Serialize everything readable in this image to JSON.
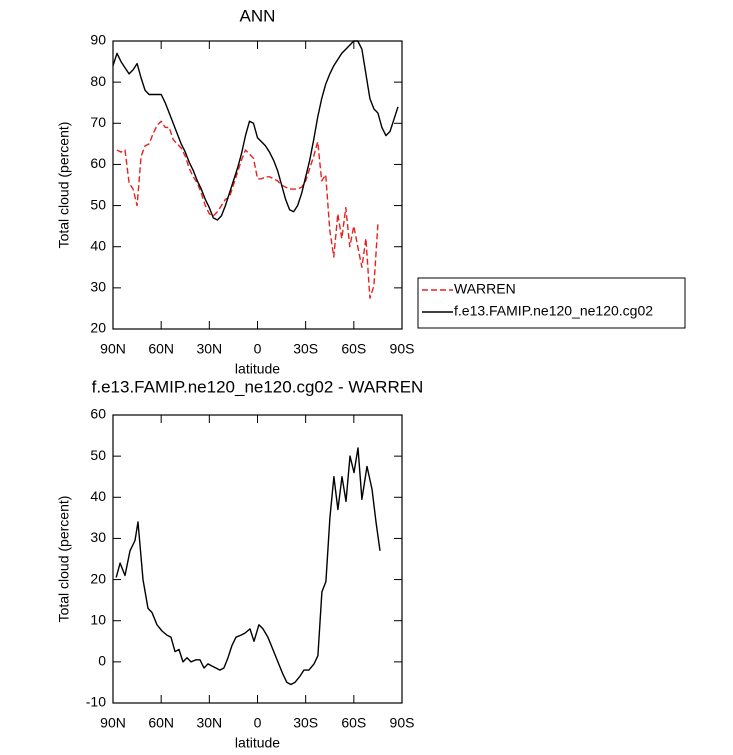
{
  "chart_data": [
    {
      "type": "line",
      "title": "ANN",
      "x_label": "latitude",
      "y_label": "Total cloud (percent)",
      "xlim": [
        90,
        -90
      ],
      "ylim": [
        20,
        90
      ],
      "xticks": [
        {
          "value": 90,
          "label": "90N"
        },
        {
          "value": 60,
          "label": "60N"
        },
        {
          "value": 30,
          "label": "30N"
        },
        0,
        {
          "value": -30,
          "label": "30S"
        },
        {
          "value": -60,
          "label": "60S"
        },
        {
          "value": -90,
          "label": "90S"
        }
      ],
      "yticks": [
        20,
        30,
        40,
        50,
        60,
        70,
        80,
        90
      ],
      "legend": "right",
      "series": [
        {
          "name": "WARREN",
          "color": "#e8201e",
          "linestyle": "dashed",
          "x": [
            87.5,
            85,
            82.5,
            80,
            77.5,
            75,
            72.5,
            70,
            67.5,
            65,
            62.5,
            60,
            57.5,
            55,
            52.5,
            50,
            47.5,
            45,
            42.5,
            40,
            37.5,
            35,
            32.5,
            30,
            27.5,
            25,
            22.5,
            20,
            17.5,
            15,
            12.5,
            10,
            7.5,
            5,
            2.5,
            0,
            -2.5,
            -5,
            -7.5,
            -10,
            -12.5,
            -15,
            -17.5,
            -20,
            -22.5,
            -25,
            -27.5,
            -30,
            -32.5,
            -35,
            -37.5,
            -40,
            -42.5,
            -45,
            -47.5,
            -50,
            -52.5,
            -55,
            -57.5,
            -60,
            -62.5,
            -65,
            -67.5,
            -70,
            -72.5,
            -75
          ],
          "values": [
            63.5,
            63,
            63.5,
            55.5,
            54,
            50,
            62,
            64.5,
            65,
            67.5,
            69.5,
            70.5,
            69,
            69,
            66,
            65,
            64,
            62,
            59,
            57,
            55.5,
            53,
            50,
            48,
            47.5,
            48.5,
            50,
            51.5,
            52,
            55,
            58,
            61,
            63.5,
            62.5,
            61.5,
            56.5,
            56.5,
            57,
            57,
            56.5,
            56,
            55,
            54.5,
            54,
            54,
            54,
            54.5,
            56,
            59,
            62,
            65.5,
            56,
            57.5,
            44,
            37.5,
            48,
            42,
            49.5,
            40,
            45,
            40,
            35,
            42,
            27.5,
            30.5,
            45.5
          ]
        },
        {
          "name": "f.e13.FAMIP.ne120_ne120.cg02",
          "color": "#000000",
          "linestyle": "solid",
          "x": [
            90,
            87.5,
            85,
            82.5,
            80,
            77.5,
            75,
            72.5,
            70,
            67.5,
            65,
            62.5,
            60,
            57.5,
            55,
            52.5,
            50,
            47.5,
            45,
            42.5,
            40,
            37.5,
            35,
            32.5,
            30,
            27.5,
            25,
            22.5,
            20,
            17.5,
            15,
            12.5,
            10,
            7.5,
            5,
            2.5,
            0,
            -2.5,
            -5,
            -7.5,
            -10,
            -12.5,
            -15,
            -17.5,
            -20,
            -22.5,
            -25,
            -27.5,
            -30,
            -32.5,
            -35,
            -37.5,
            -40,
            -42.5,
            -45,
            -47.5,
            -50,
            -52.5,
            -55,
            -57.5,
            -60,
            -62.5,
            -65,
            -67.5,
            -70,
            -72.5,
            -75,
            -77.5,
            -80,
            -82.5,
            -85,
            -87.5
          ],
          "values": [
            84,
            87,
            85,
            83.5,
            82,
            83,
            84.5,
            81,
            78,
            77,
            77,
            77,
            77,
            75,
            72.5,
            70,
            67.5,
            65,
            63,
            60.5,
            58.5,
            56,
            54,
            51.5,
            49.5,
            47,
            46.5,
            47.5,
            50,
            53,
            56,
            59,
            62.5,
            67,
            70.5,
            70,
            66.5,
            65.5,
            64.5,
            63,
            61,
            58.5,
            55,
            51.5,
            49,
            48.5,
            50,
            53,
            57,
            61,
            66,
            71.5,
            76,
            79.5,
            82,
            84,
            85.5,
            87,
            88,
            89,
            90,
            90,
            88,
            82,
            76,
            73.5,
            72.5,
            69,
            67,
            68,
            71,
            74
          ]
        }
      ]
    },
    {
      "type": "line",
      "title": "f.e13.FAMIP.ne120_ne120.cg02 - WARREN",
      "x_label": "latitude",
      "y_label": "Total cloud (percent)",
      "xlim": [
        90,
        -90
      ],
      "ylim": [
        -10,
        60
      ],
      "xticks": [
        {
          "value": 90,
          "label": "90N"
        },
        {
          "value": 60,
          "label": "60N"
        },
        {
          "value": 30,
          "label": "30N"
        },
        0,
        {
          "value": -30,
          "label": "30S"
        },
        {
          "value": -60,
          "label": "60S"
        },
        {
          "value": -90,
          "label": "90S"
        }
      ],
      "yticks": [
        -10,
        0,
        10,
        20,
        30,
        40,
        50,
        60
      ],
      "series": [
        {
          "color": "#000000",
          "linestyle": "solid",
          "x": [
            88,
            85.6,
            82.5,
            79.4,
            76.3,
            74.4,
            71.3,
            68.2,
            65.7,
            62.6,
            59.5,
            56.4,
            53.9,
            51.4,
            48.9,
            46.4,
            43.9,
            41.4,
            38.3,
            35.8,
            33.3,
            30.8,
            28.4,
            25.9,
            23.4,
            20.9,
            18.4,
            15.9,
            13.4,
            10.3,
            7.8,
            4.7,
            2.2,
            -0.9,
            -3.4,
            -6.5,
            -9.6,
            -12.7,
            -15.8,
            -18.3,
            -20.8,
            -23.3,
            -26.4,
            -28.9,
            -32,
            -35.2,
            -37.6,
            -40.1,
            -42.6,
            -45.1,
            -47.6,
            -50.1,
            -52.6,
            -55.1,
            -57.6,
            -60.1,
            -62.6,
            -65,
            -68.2,
            -71.3,
            -73.8,
            -76.3
          ],
          "values": [
            20.5,
            24,
            21,
            27,
            29.5,
            34,
            20,
            13,
            12,
            9,
            7.5,
            6.5,
            6,
            2.5,
            3,
            0,
            1,
            0,
            0.5,
            0.5,
            -1.5,
            -0.5,
            -1,
            -1.5,
            -2,
            -1.5,
            1,
            4,
            6,
            6.5,
            7,
            8,
            5,
            9,
            8,
            6,
            3,
            0,
            -3,
            -5,
            -5.5,
            -5,
            -3.5,
            -2,
            -2,
            -0.5,
            1.5,
            17,
            19.5,
            35,
            45,
            37,
            45,
            39,
            50,
            46,
            52,
            39.5,
            47.5,
            42,
            34,
            27
          ]
        }
      ]
    }
  ]
}
